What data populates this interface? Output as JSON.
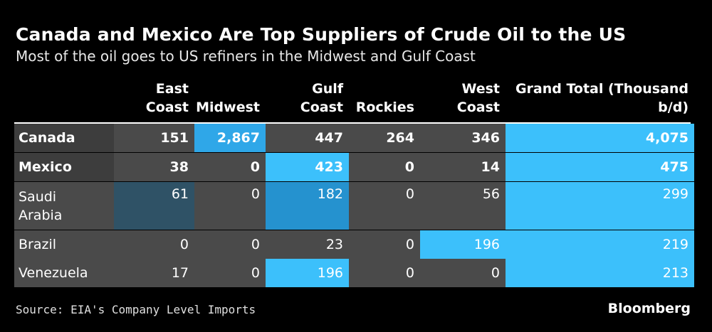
{
  "chart_data": {
    "type": "table",
    "title": "Canada and Mexico Are Top Suppliers of Crude Oil to the US",
    "subtitle": "Most of the oil goes to US refiners in the Midwest and Gulf Coast",
    "columns": [
      {
        "key": "east",
        "label": [
          "East",
          "Coast"
        ]
      },
      {
        "key": "midwest",
        "label": [
          "Midwest"
        ]
      },
      {
        "key": "gulf",
        "label": [
          "Gulf",
          "Coast"
        ]
      },
      {
        "key": "rockies",
        "label": [
          "Rockies"
        ]
      },
      {
        "key": "west",
        "label": [
          "West",
          "Coast"
        ]
      },
      {
        "key": "total",
        "label": [
          "Grand Total (Thousand",
          "b/d)"
        ]
      }
    ],
    "rows": [
      {
        "country": [
          "Canada"
        ],
        "bold": true,
        "values": [
          "151",
          "2,867",
          "447",
          "264",
          "346",
          "4,075"
        ],
        "colors": [
          "#4a4a4a",
          "#2fa7e8",
          "#4a4a4a",
          "#4a4a4a",
          "#4a4a4a",
          "#3cc0fb"
        ],
        "country_color": "#3d3d3d"
      },
      {
        "country": [
          "Mexico"
        ],
        "bold": true,
        "values": [
          "38",
          "0",
          "423",
          "0",
          "14",
          "475"
        ],
        "colors": [
          "#4a4a4a",
          "#4a4a4a",
          "#3cc0fb",
          "#4a4a4a",
          "#4a4a4a",
          "#3cc0fb"
        ],
        "country_color": "#3d3d3d"
      },
      {
        "country": [
          "Saudi",
          "Arabia"
        ],
        "bold": false,
        "values": [
          "61",
          "0",
          "182",
          "0",
          "56",
          "299"
        ],
        "colors": [
          "#2f5266",
          "#4a4a4a",
          "#2592cf",
          "#4a4a4a",
          "#4a4a4a",
          "#3cc0fb"
        ],
        "country_color": "#4a4a4a"
      },
      {
        "country": [
          "Brazil"
        ],
        "bold": false,
        "values": [
          "0",
          "0",
          "23",
          "0",
          "196",
          "219"
        ],
        "colors": [
          "#4a4a4a",
          "#4a4a4a",
          "#4a4a4a",
          "#4a4a4a",
          "#3cc0fb",
          "#3cc0fb"
        ],
        "country_color": "#4a4a4a"
      },
      {
        "country": [
          "Venezuela"
        ],
        "bold": false,
        "values": [
          "17",
          "0",
          "196",
          "0",
          "0",
          "213"
        ],
        "colors": [
          "#4a4a4a",
          "#4a4a4a",
          "#3cc0fb",
          "#4a4a4a",
          "#4a4a4a",
          "#3cc0fb"
        ],
        "country_color": "#4a4a4a"
      }
    ],
    "source": "Source: EIA's Company Level Imports",
    "brand": "Bloomberg"
  }
}
